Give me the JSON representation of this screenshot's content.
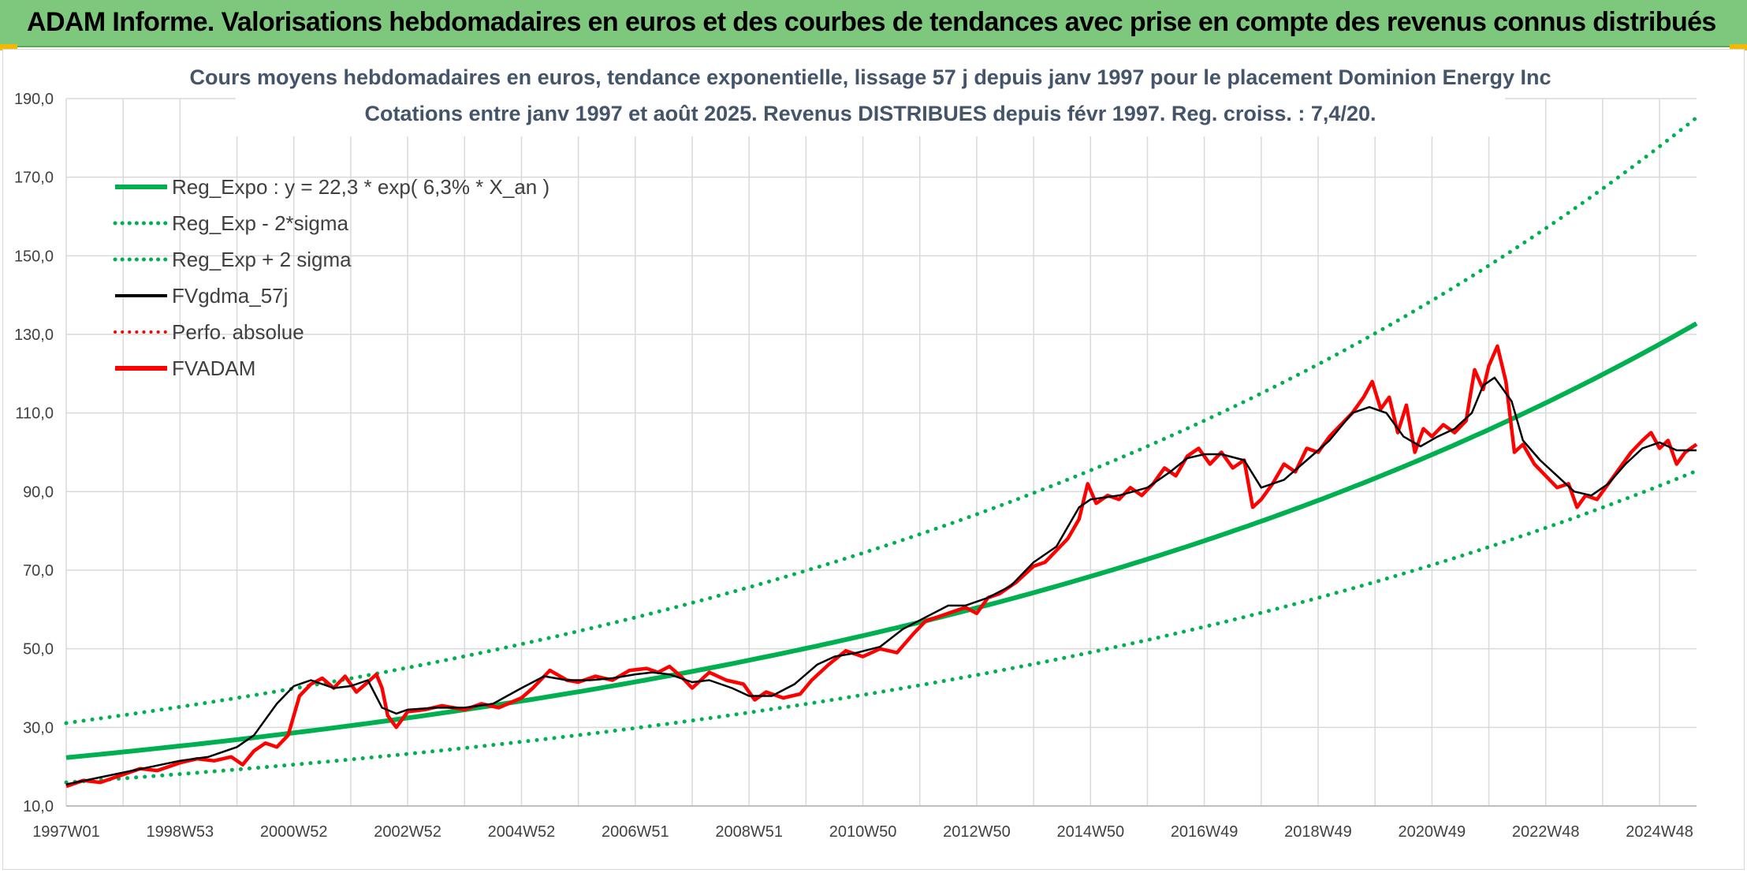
{
  "banner": {
    "text": "ADAM Informe. Valorisations hebdomadaires en euros et des courbes de tendances avec prise en compte des revenus connus distribués"
  },
  "colors": {
    "banner_bg": "#7ec87e",
    "trend_green": "#00b050",
    "fvadam_red": "#ff0000",
    "fvgdma_black": "#000000",
    "grid": "#d9d9d9"
  },
  "chart_data": {
    "type": "line",
    "title_line1": "Cours moyens hebdomadaires en euros, tendance exponentielle, lissage 57 j depuis janv 1997 pour le placement Dominion Energy Inc",
    "title_line2": "Cotations entre janv 1997 et août 2025. Revenus DISTRIBUES depuis févr 1997. Reg. croiss. : 7,4/20.",
    "x_unit": "years",
    "x_range": [
      1997.0,
      2025.65
    ],
    "xlim": [
      1997.0,
      2025.65
    ],
    "ylim": [
      10,
      190
    ],
    "yticks": [
      "10,0",
      "30,0",
      "50,0",
      "70,0",
      "90,0",
      "110,0",
      "130,0",
      "150,0",
      "170,0",
      "190,0"
    ],
    "ytick_values": [
      10,
      30,
      50,
      70,
      90,
      110,
      130,
      150,
      170,
      190
    ],
    "xticks": [
      "1997W01",
      "1998W53",
      "2000W52",
      "2002W52",
      "2004W52",
      "2006W51",
      "2008W51",
      "2010W50",
      "2012W50",
      "2014W50",
      "2016W49",
      "2018W49",
      "2020W49",
      "2022W48",
      "2024W48"
    ],
    "xtick_values": [
      1997.0,
      1999.0,
      2001.0,
      2003.0,
      2005.0,
      2007.0,
      2009.0,
      2011.0,
      2013.0,
      2015.0,
      2017.0,
      2019.0,
      2021.0,
      2023.0,
      2025.0
    ],
    "grid": true,
    "legend_position": "top-left",
    "legend": [
      {
        "label": "Reg_Expo : y = 22,3 * exp( 6,3% *  X_an )",
        "color": "#00b050",
        "style": "solid",
        "width": 6
      },
      {
        "label": "Reg_Exp - 2*sigma",
        "color": "#00b050",
        "style": "dotted",
        "width": 5
      },
      {
        "label": "Reg_Exp + 2 sigma",
        "color": "#00b050",
        "style": "dotted",
        "width": 5
      },
      {
        "label": "FVgdma_57j",
        "color": "#000000",
        "style": "solid",
        "width": 4
      },
      {
        "label": "Perfo. absolue",
        "color": "#ff0000",
        "style": "dotted",
        "width": 4
      },
      {
        "label": "FVADAM",
        "color": "#ff0000",
        "style": "solid",
        "width": 6
      }
    ],
    "series": [
      {
        "name": "Reg_Expo : y = 22,3 * exp( 6,3% *  X_an )",
        "x": [
          1997.0,
          1999.0,
          2001.0,
          2003.0,
          2005.0,
          2007.0,
          2009.0,
          2011.0,
          2013.0,
          2015.0,
          2017.0,
          2019.0,
          2021.0,
          2023.0,
          2025.0,
          2025.65
        ],
        "values": [
          22.3,
          25.3,
          28.6,
          32.4,
          36.7,
          41.6,
          47.1,
          53.3,
          60.4,
          68.4,
          77.5,
          87.8,
          99.4,
          112.6,
          127.5,
          135.2
        ]
      },
      {
        "name": "Reg_Exp - 2*sigma",
        "x": [
          1997.0,
          1999.0,
          2001.0,
          2003.0,
          2005.0,
          2007.0,
          2009.0,
          2011.0,
          2013.0,
          2015.0,
          2017.0,
          2019.0,
          2021.0,
          2023.0,
          2025.0,
          2025.65
        ],
        "values": [
          16.0,
          18.1,
          20.5,
          23.2,
          26.3,
          29.8,
          33.7,
          38.2,
          43.2,
          49.0,
          55.5,
          62.8,
          71.2,
          80.6,
          91.3,
          97.0
        ]
      },
      {
        "name": "Reg_Exp + 2 sigma",
        "x": [
          1997.0,
          1999.0,
          2001.0,
          2003.0,
          2005.0,
          2007.0,
          2009.0,
          2011.0,
          2013.0,
          2015.0,
          2017.0,
          2019.0,
          2021.0,
          2023.0,
          2025.0,
          2025.65
        ],
        "values": [
          31.1,
          35.2,
          39.9,
          45.1,
          51.1,
          57.9,
          65.6,
          74.3,
          84.1,
          95.3,
          107.9,
          122.2,
          138.4,
          156.7,
          177.5,
          188.0
        ]
      },
      {
        "name": "FVgdma_57j",
        "x": [
          1997.0,
          1997.5,
          1998.0,
          1998.5,
          1999.0,
          1999.5,
          2000.0,
          2000.3,
          2000.7,
          2001.0,
          2001.3,
          2001.7,
          2002.0,
          2002.3,
          2002.55,
          2002.8,
          2003.0,
          2003.5,
          2004.0,
          2004.5,
          2005.0,
          2005.4,
          2005.8,
          2006.2,
          2006.6,
          2007.0,
          2007.3,
          2007.6,
          2008.0,
          2008.3,
          2008.7,
          2009.0,
          2009.4,
          2009.8,
          2010.2,
          2010.5,
          2010.9,
          2011.3,
          2011.7,
          2012.1,
          2012.5,
          2012.8,
          2013.2,
          2013.6,
          2014.0,
          2014.4,
          2014.8,
          2015.0,
          2015.5,
          2016.0,
          2016.4,
          2016.7,
          2017.0,
          2017.3,
          2017.7,
          2018.0,
          2018.4,
          2018.8,
          2019.2,
          2019.6,
          2019.9,
          2020.2,
          2020.5,
          2020.8,
          2021.1,
          2021.4,
          2021.7,
          2021.9,
          2022.1,
          2022.4,
          2022.6,
          2022.9,
          2023.2,
          2023.5,
          2023.8,
          2024.1,
          2024.4,
          2024.7,
          2025.0,
          2025.3,
          2025.65
        ],
        "values": [
          15.5,
          17.0,
          18.5,
          20.0,
          21.5,
          22.5,
          25.0,
          28.0,
          36.0,
          40.5,
          42.0,
          40.0,
          40.5,
          42.0,
          35.0,
          33.5,
          34.5,
          35.0,
          35.0,
          36.0,
          40.0,
          43.0,
          42.0,
          42.0,
          42.5,
          43.5,
          44.0,
          43.5,
          41.5,
          42.0,
          40.0,
          38.0,
          38.0,
          41.0,
          46.0,
          48.0,
          49.0,
          50.5,
          55.0,
          58.0,
          61.0,
          61.0,
          63.0,
          66.0,
          72.0,
          76.0,
          86.0,
          88.0,
          89.0,
          91.0,
          95.0,
          98.5,
          99.5,
          99.5,
          98.0,
          91.0,
          93.0,
          98.0,
          103.0,
          110.0,
          111.5,
          110.0,
          104.0,
          101.5,
          104.0,
          106.0,
          110.0,
          117.0,
          119.0,
          113.0,
          103.0,
          98.0,
          94.0,
          90.0,
          89.0,
          92.0,
          97.0,
          101.0,
          102.5,
          100.5,
          100.5
        ]
      },
      {
        "name": "FVADAM",
        "x": [
          1997.0,
          1997.3,
          1997.6,
          1998.0,
          1998.3,
          1998.6,
          1999.0,
          1999.3,
          1999.6,
          1999.9,
          2000.1,
          2000.3,
          2000.5,
          2000.7,
          2000.9,
          2001.1,
          2001.3,
          2001.5,
          2001.7,
          2001.9,
          2002.1,
          2002.3,
          2002.45,
          2002.55,
          2002.65,
          2002.8,
          2003.0,
          2003.3,
          2003.6,
          2004.0,
          2004.3,
          2004.6,
          2005.0,
          2005.2,
          2005.5,
          2005.8,
          2006.0,
          2006.3,
          2006.6,
          2006.9,
          2007.2,
          2007.4,
          2007.6,
          2007.8,
          2008.0,
          2008.3,
          2008.6,
          2008.9,
          2009.1,
          2009.3,
          2009.6,
          2009.9,
          2010.1,
          2010.4,
          2010.7,
          2011.0,
          2011.3,
          2011.6,
          2011.9,
          2012.1,
          2012.4,
          2012.6,
          2012.8,
          2013.0,
          2013.2,
          2013.4,
          2013.7,
          2014.0,
          2014.2,
          2014.4,
          2014.6,
          2014.8,
          2014.95,
          2015.1,
          2015.3,
          2015.5,
          2015.7,
          2015.9,
          2016.1,
          2016.3,
          2016.5,
          2016.7,
          2016.9,
          2017.1,
          2017.3,
          2017.5,
          2017.7,
          2017.85,
          2018.0,
          2018.2,
          2018.4,
          2018.6,
          2018.8,
          2019.0,
          2019.2,
          2019.4,
          2019.6,
          2019.8,
          2019.95,
          2020.1,
          2020.25,
          2020.4,
          2020.55,
          2020.7,
          2020.85,
          2021.0,
          2021.2,
          2021.4,
          2021.6,
          2021.75,
          2021.9,
          2022.0,
          2022.15,
          2022.3,
          2022.45,
          2022.6,
          2022.8,
          2023.0,
          2023.2,
          2023.4,
          2023.55,
          2023.7,
          2023.9,
          2024.1,
          2024.3,
          2024.5,
          2024.7,
          2024.85,
          2025.0,
          2025.15,
          2025.3,
          2025.45,
          2025.65
        ],
        "values": [
          15.0,
          16.5,
          16.0,
          18.0,
          19.5,
          19.0,
          21.0,
          22.0,
          21.5,
          22.5,
          20.5,
          24.0,
          26.0,
          25.0,
          28.0,
          38.0,
          41.0,
          42.5,
          40.0,
          43.0,
          39.0,
          41.5,
          43.5,
          40.0,
          33.0,
          30.0,
          34.0,
          34.5,
          35.5,
          34.5,
          36.0,
          35.0,
          37.5,
          40.0,
          44.5,
          42.0,
          41.5,
          43.0,
          42.0,
          44.5,
          45.0,
          44.0,
          45.5,
          43.0,
          40.0,
          44.0,
          42.0,
          41.0,
          37.0,
          39.0,
          37.5,
          38.5,
          42.0,
          46.0,
          49.5,
          48.0,
          50.0,
          49.0,
          54.0,
          57.0,
          58.5,
          59.5,
          60.5,
          59.0,
          63.0,
          64.0,
          67.0,
          71.0,
          72.0,
          75.0,
          78.0,
          83.0,
          92.0,
          87.0,
          89.0,
          88.0,
          91.0,
          89.0,
          92.0,
          96.0,
          94.0,
          99.0,
          101.0,
          97.0,
          100.0,
          96.0,
          98.0,
          86.0,
          88.0,
          92.0,
          97.0,
          95.0,
          101.0,
          100.0,
          104.0,
          107.0,
          110.0,
          114.0,
          118.0,
          111.0,
          114.0,
          105.0,
          112.0,
          100.0,
          106.0,
          104.0,
          107.0,
          105.0,
          108.0,
          121.0,
          116.0,
          122.0,
          127.0,
          118.0,
          100.0,
          102.0,
          97.0,
          94.0,
          91.0,
          92.0,
          86.0,
          89.0,
          88.0,
          92.0,
          96.0,
          100.0,
          103.0,
          105.0,
          101.0,
          103.0,
          97.0,
          100.0,
          102.0
        ]
      }
    ]
  }
}
